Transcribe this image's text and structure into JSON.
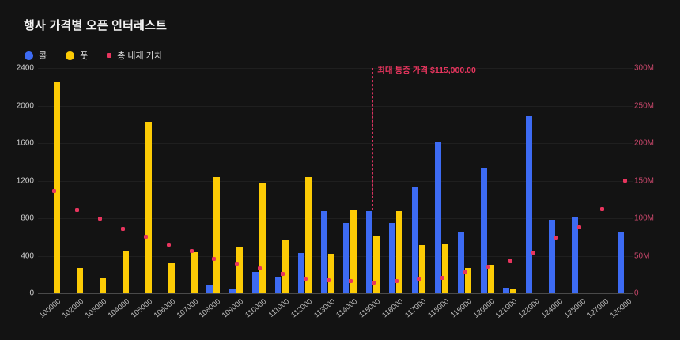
{
  "title": "행사 가격별 오픈 인터레스트",
  "legend": [
    {
      "label": "콜",
      "color": "#3D6BF3",
      "marker": "circle"
    },
    {
      "label": "풋",
      "color": "#FCCB05",
      "marker": "circle"
    },
    {
      "label": "총 내재 가치",
      "color": "#E8355E",
      "marker": "square"
    }
  ],
  "annotation": {
    "text": "최대 통증 가격 $115,000.00",
    "category": 115000,
    "color": "#E8355E"
  },
  "chart_data": {
    "type": "bar",
    "title": "행사 가격별 오픈 인터레스트",
    "categories": [
      100000,
      102000,
      103000,
      104000,
      105000,
      106000,
      107000,
      108000,
      109000,
      110000,
      111000,
      112000,
      113000,
      114000,
      115000,
      116000,
      117000,
      118000,
      119000,
      120000,
      121000,
      122000,
      124000,
      125000,
      127000,
      130000
    ],
    "series": [
      {
        "name": "콜",
        "type": "bar",
        "axis": "left",
        "color": "#3D6BF3",
        "values": [
          0,
          0,
          0,
          0,
          0,
          0,
          0,
          90,
          40,
          230,
          180,
          430,
          880,
          750,
          880,
          750,
          1130,
          1610,
          660,
          1330,
          55,
          1890,
          780,
          810,
          0,
          660
        ]
      },
      {
        "name": "풋",
        "type": "bar",
        "axis": "left",
        "color": "#FCCB05",
        "values": [
          2250,
          270,
          160,
          450,
          1830,
          320,
          440,
          1240,
          500,
          1170,
          570,
          1240,
          420,
          890,
          610,
          880,
          510,
          530,
          270,
          300,
          45,
          0,
          0,
          0,
          0,
          0
        ]
      },
      {
        "name": "총 내재 가치",
        "type": "scatter",
        "axis": "right",
        "color": "#E8355E",
        "unit": "M",
        "values": [
          136,
          111,
          99,
          86,
          75,
          65,
          56,
          46,
          39,
          33,
          26,
          20,
          17,
          16,
          14,
          16,
          19,
          21,
          28,
          35,
          44,
          54,
          74,
          88,
          112,
          150
        ]
      }
    ],
    "left_axis": {
      "ticks": [
        0,
        400,
        800,
        1200,
        1600,
        2000,
        2400
      ],
      "max": 2400
    },
    "right_axis": {
      "tick_labels": [
        "0",
        "50M",
        "100M",
        "150M",
        "200M",
        "250M",
        "300M"
      ],
      "max": 300,
      "color": "#C9476B"
    },
    "grid": "horizontal",
    "legend_position": "top-left",
    "background": "#131313"
  }
}
